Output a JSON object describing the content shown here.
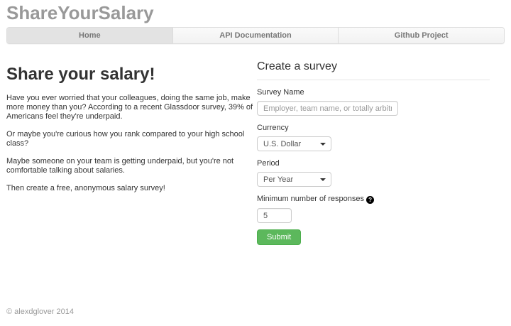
{
  "header": {
    "brand": "ShareYourSalary"
  },
  "tabs": [
    {
      "label": "Home",
      "active": true
    },
    {
      "label": "API Documentation",
      "active": false
    },
    {
      "label": "Github Project",
      "active": false
    }
  ],
  "intro": {
    "heading": "Share your salary!",
    "paragraphs": [
      "Have you ever worried that your colleagues, doing the same job, make more money than you? According to a recent Glassdoor survey, 39% of Americans feel they're underpaid.",
      "Or maybe you're curious how you rank compared to your high school class?",
      "Maybe someone on your team is getting underpaid, but you're not comfortable talking about salaries.",
      "Then create a free, anonymous salary survey!"
    ]
  },
  "form": {
    "heading": "Create a survey",
    "survey_name": {
      "label": "Survey Name",
      "placeholder": "Employer, team name, or totally arbitratry",
      "value": ""
    },
    "currency": {
      "label": "Currency",
      "selected": "U.S. Dollar"
    },
    "period": {
      "label": "Period",
      "selected": "Per Year"
    },
    "min_responses": {
      "label": "Minimum number of responses",
      "value": "5",
      "help_glyph": "?"
    },
    "submit_label": "Submit"
  },
  "footer": {
    "copyright": "© alexdglover 2014"
  },
  "colors": {
    "brand_text": "#999999",
    "tab_active_bg": "#e3e3e3",
    "tab_text": "#777777",
    "border": "#dcdcdc",
    "accent_green": "#5cb85c",
    "accent_green_border": "#4cae4c",
    "text": "#333333",
    "placeholder": "#999999"
  }
}
